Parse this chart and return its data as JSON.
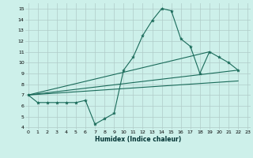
{
  "xlabel": "Humidex (Indice chaleur)",
  "bg_color": "#cdf0ea",
  "grid_color": "#b0ccc8",
  "line_color": "#1a6b5a",
  "lines": [
    {
      "x": [
        0,
        1,
        2,
        3,
        4,
        5,
        6,
        7,
        8,
        9,
        10,
        11,
        12,
        13,
        14,
        15,
        16,
        17,
        18,
        19,
        20,
        21,
        22
      ],
      "y": [
        7,
        6.3,
        6.3,
        6.3,
        6.3,
        6.3,
        6.5,
        4.3,
        4.8,
        5.3,
        9.3,
        10.5,
        12.5,
        13.9,
        15.0,
        14.8,
        12.2,
        11.5,
        9.0,
        11.0,
        10.5,
        10.0,
        9.3
      ]
    },
    {
      "x": [
        0,
        22
      ],
      "y": [
        7,
        9.3
      ]
    },
    {
      "x": [
        0,
        19
      ],
      "y": [
        7,
        11.0
      ]
    },
    {
      "x": [
        0,
        22
      ],
      "y": [
        7,
        8.3
      ]
    }
  ],
  "xlim": [
    -0.3,
    23.3
  ],
  "ylim": [
    3.8,
    15.5
  ],
  "yticks": [
    4,
    5,
    6,
    7,
    8,
    9,
    10,
    11,
    12,
    13,
    14,
    15
  ],
  "xticks": [
    0,
    1,
    2,
    3,
    4,
    5,
    6,
    7,
    8,
    9,
    10,
    11,
    12,
    13,
    14,
    15,
    16,
    17,
    18,
    19,
    20,
    21,
    22,
    23
  ]
}
